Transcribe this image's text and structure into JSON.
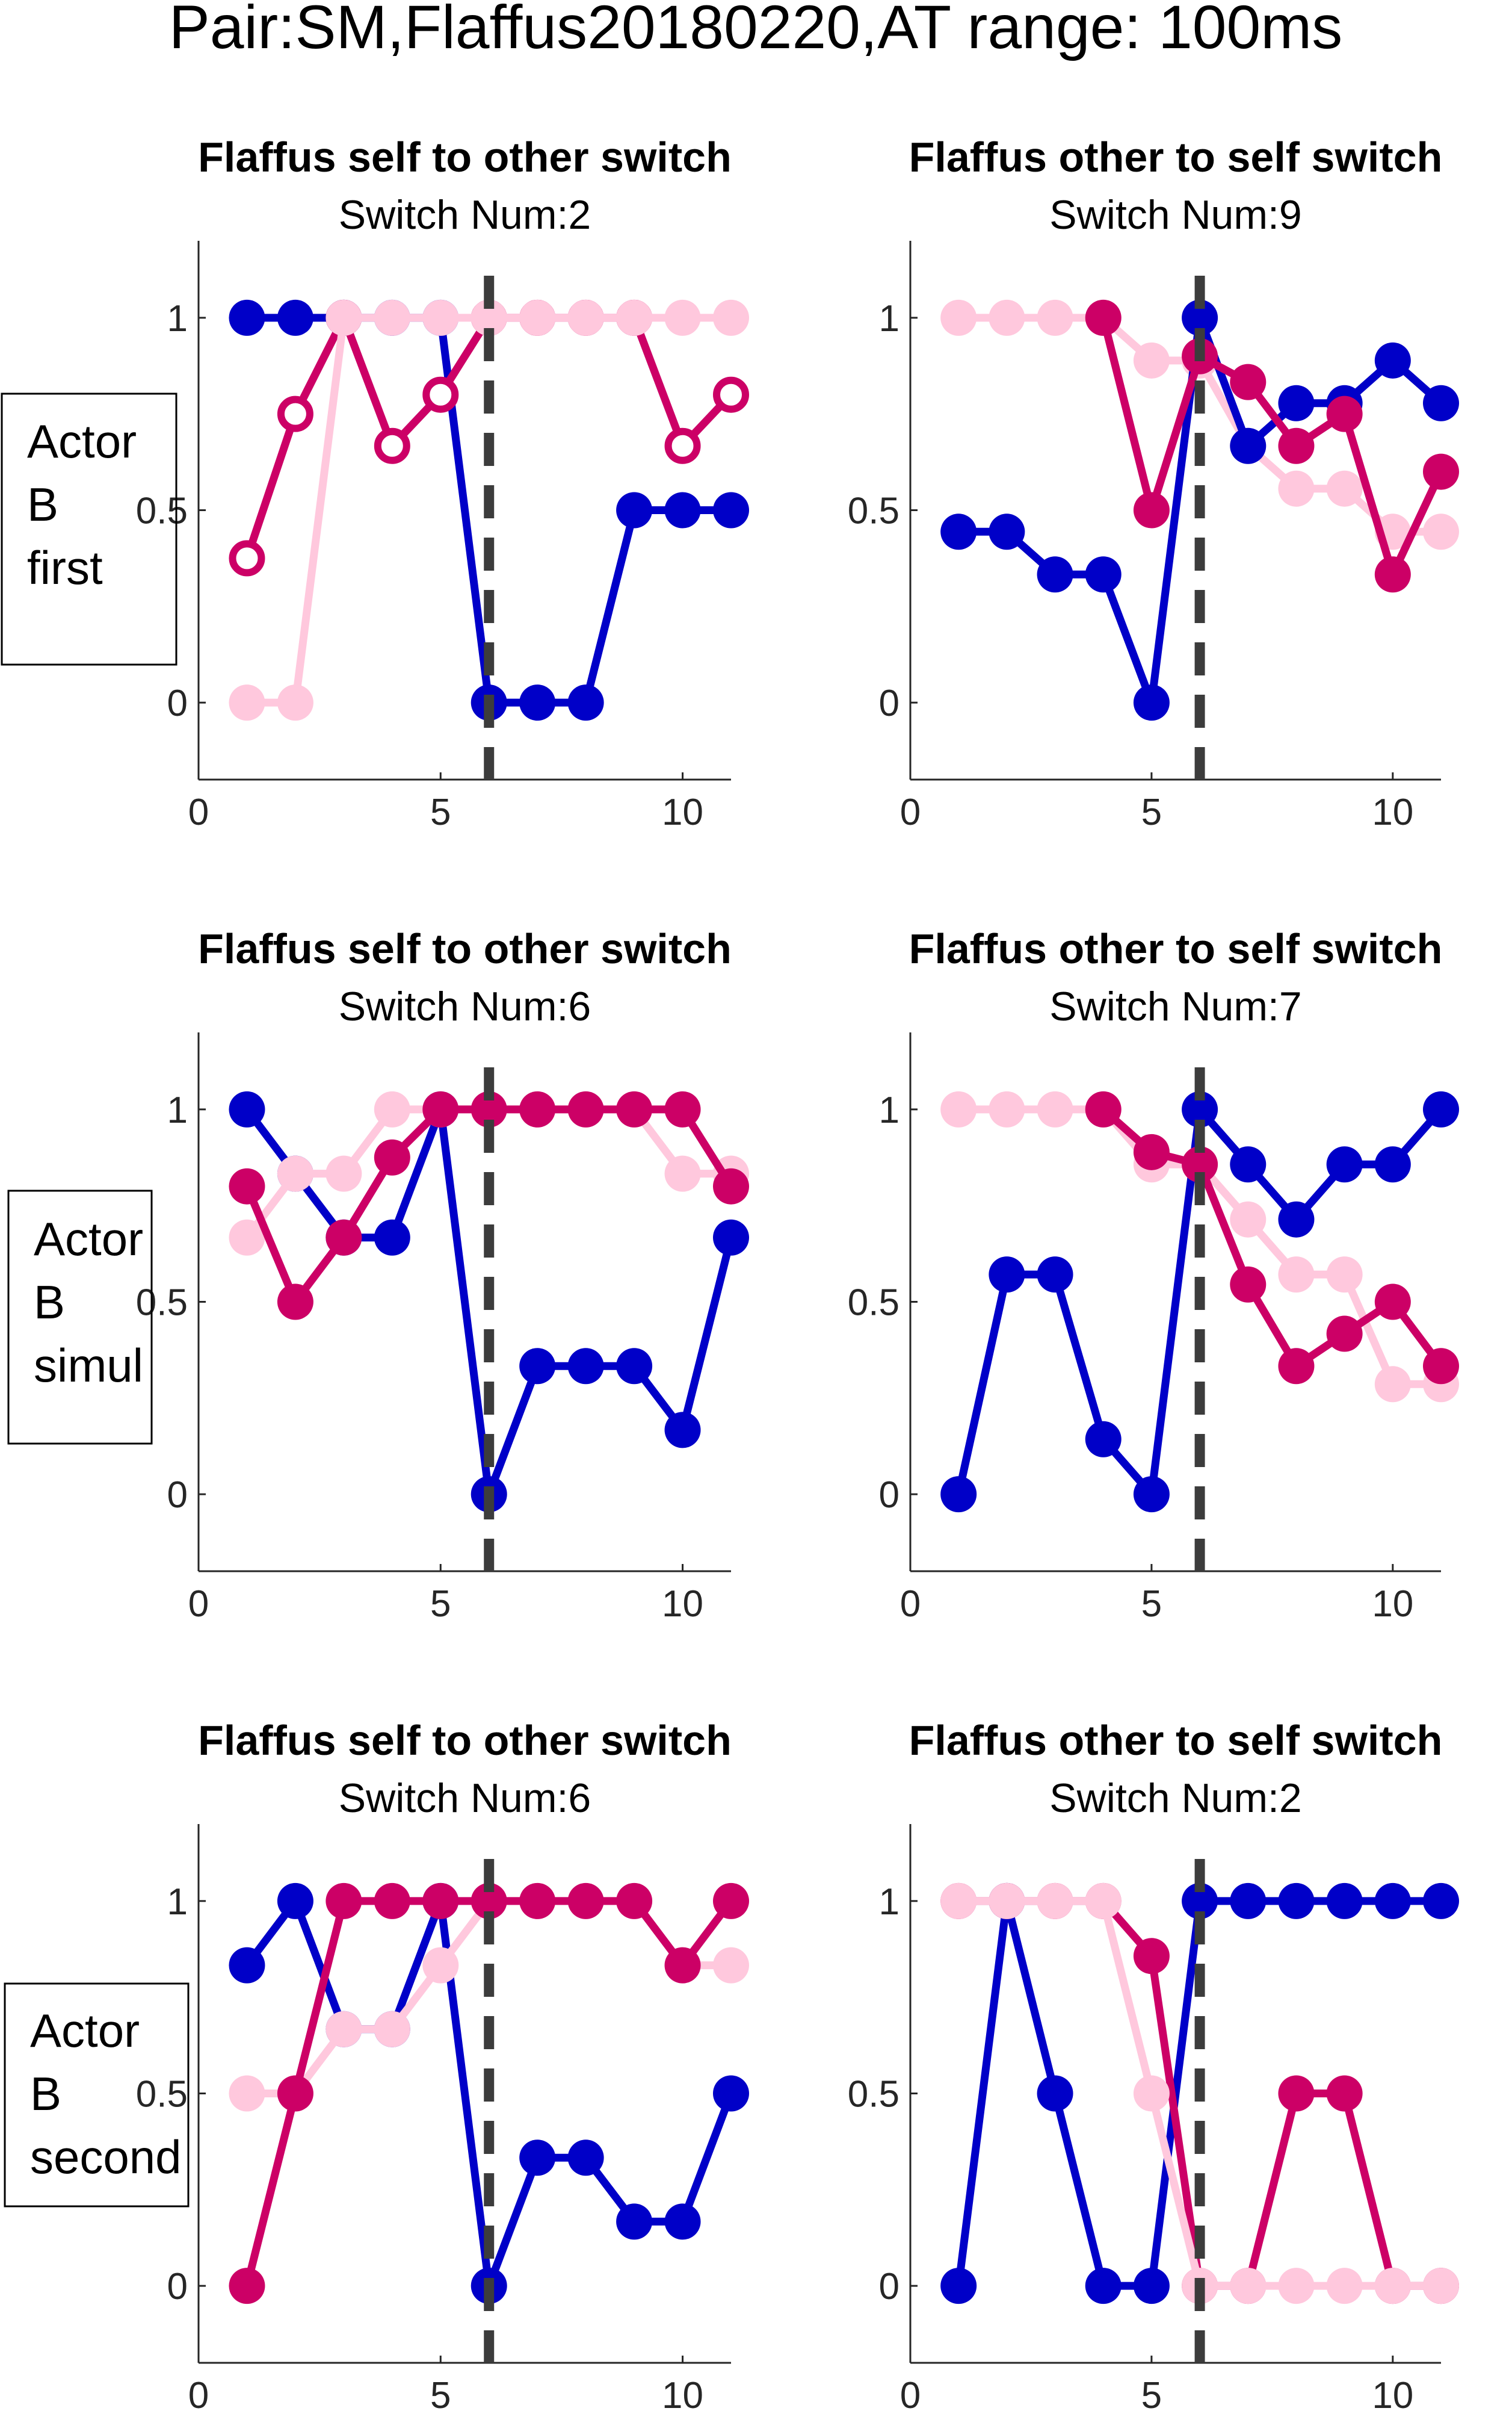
{
  "figure_title": "Pair:SM,Flaffus20180220,AT range: 100ms",
  "row_labels": [
    [
      "Actor",
      "B",
      "first"
    ],
    [
      "Actor",
      "B",
      "simul"
    ],
    [
      "Actor",
      "B",
      "second"
    ]
  ],
  "colors": {
    "blue": "#0000c8",
    "magenta": "#cc0066",
    "pink": "#ffc8dd",
    "dashed_line": "#3c3c3c",
    "axis": "#262626"
  },
  "chart_data": [
    {
      "type": "line",
      "title": "Flaffus self to other switch",
      "subtitle": "Switch Num:2",
      "xlim": [
        0,
        11
      ],
      "ylim": [
        -0.2,
        1.2
      ],
      "xticks": [
        "0",
        "5",
        "10"
      ],
      "yticks": [
        "0",
        "0.5",
        "1"
      ],
      "vline_x": 6,
      "series": [
        {
          "color": "blue",
          "marker": "filled",
          "x": [
            1,
            2,
            3,
            4,
            5,
            6,
            7,
            8,
            9,
            10,
            11
          ],
          "y": [
            1,
            1,
            1,
            1,
            1,
            0,
            0,
            0,
            0.5,
            0.5,
            0.5
          ]
        },
        {
          "color": "magenta",
          "marker": "open",
          "x": [
            1,
            2,
            3,
            4,
            5,
            6,
            7,
            8,
            9,
            10,
            11
          ],
          "y": [
            0.375,
            0.75,
            1,
            0.667,
            0.8,
            1,
            1,
            1,
            1,
            0.667,
            0.8
          ]
        },
        {
          "color": "pink",
          "marker": "filled",
          "x": [
            1,
            2,
            3,
            4,
            5,
            6,
            7,
            8,
            9,
            10,
            11
          ],
          "y": [
            0,
            0,
            1,
            1,
            1,
            1,
            1,
            1,
            1,
            1,
            1
          ]
        }
      ]
    },
    {
      "type": "line",
      "title": "Flaffus other to self switch",
      "subtitle": "Switch Num:9",
      "xlim": [
        0,
        11
      ],
      "ylim": [
        -0.2,
        1.2
      ],
      "xticks": [
        "0",
        "5",
        "10"
      ],
      "yticks": [
        "0",
        "0.5",
        "1"
      ],
      "vline_x": 6,
      "series": [
        {
          "color": "pink",
          "marker": "filled",
          "x": [
            1,
            2,
            3,
            4,
            5,
            6,
            7,
            8,
            9,
            10,
            11
          ],
          "y": [
            1,
            1,
            1,
            1,
            0.889,
            0.889,
            0.667,
            0.556,
            0.556,
            0.444,
            0.444
          ]
        },
        {
          "color": "blue",
          "marker": "filled",
          "x": [
            1,
            2,
            3,
            4,
            5,
            6,
            7,
            8,
            9,
            10,
            11
          ],
          "y": [
            0.444,
            0.444,
            0.333,
            0.333,
            0,
            1,
            0.667,
            0.778,
            0.778,
            0.889,
            0.778
          ]
        },
        {
          "color": "magenta",
          "marker": "filled",
          "x": [
            4,
            5,
            6,
            7,
            8,
            9,
            10,
            11
          ],
          "y": [
            1,
            0.5,
            0.9,
            0.833,
            0.667,
            0.75,
            0.333,
            0.6
          ]
        }
      ]
    },
    {
      "type": "line",
      "title": "Flaffus self to other switch",
      "subtitle": "Switch Num:6",
      "xlim": [
        0,
        11
      ],
      "ylim": [
        -0.2,
        1.2
      ],
      "xticks": [
        "0",
        "5",
        "10"
      ],
      "yticks": [
        "0",
        "0.5",
        "1"
      ],
      "vline_x": 6,
      "series": [
        {
          "color": "blue",
          "marker": "filled",
          "x": [
            1,
            2,
            3,
            4,
            5,
            6,
            7,
            8,
            9,
            10,
            11
          ],
          "y": [
            1,
            0.833,
            0.667,
            0.667,
            1,
            0,
            0.333,
            0.333,
            0.333,
            0.167,
            0.667
          ]
        },
        {
          "color": "pink",
          "marker": "filled",
          "x": [
            1,
            2,
            3,
            4,
            5,
            6,
            7,
            8,
            9,
            10,
            11
          ],
          "y": [
            0.667,
            0.833,
            0.833,
            1,
            1,
            1,
            1,
            1,
            1,
            0.833,
            0.833
          ]
        },
        {
          "color": "magenta",
          "marker": "filled",
          "x": [
            1,
            2,
            3,
            4,
            5,
            6,
            7,
            8,
            9,
            10,
            11
          ],
          "y": [
            0.8,
            0.5,
            0.667,
            0.875,
            1,
            1,
            1,
            1,
            1,
            1,
            0.8
          ]
        }
      ]
    },
    {
      "type": "line",
      "title": "Flaffus other to self switch",
      "subtitle": "Switch Num:7",
      "xlim": [
        0,
        11
      ],
      "ylim": [
        -0.2,
        1.2
      ],
      "xticks": [
        "0",
        "5",
        "10"
      ],
      "yticks": [
        "0",
        "0.5",
        "1"
      ],
      "vline_x": 6,
      "series": [
        {
          "color": "blue",
          "marker": "filled",
          "x": [
            1,
            2,
            3,
            4,
            5,
            6,
            7,
            8,
            9,
            10,
            11
          ],
          "y": [
            0,
            0.571,
            0.571,
            0.143,
            0,
            1,
            0.857,
            0.714,
            0.857,
            0.857,
            1
          ]
        },
        {
          "color": "pink",
          "marker": "filled",
          "x": [
            1,
            2,
            3,
            4,
            5,
            6,
            7,
            8,
            9,
            10,
            11
          ],
          "y": [
            1,
            1,
            1,
            1,
            0.857,
            0.857,
            0.714,
            0.571,
            0.571,
            0.286,
            0.286
          ]
        },
        {
          "color": "magenta",
          "marker": "filled",
          "x": [
            4,
            5,
            6,
            7,
            8,
            9,
            10,
            11
          ],
          "y": [
            1,
            0.889,
            0.857,
            0.545,
            0.333,
            0.417,
            0.5,
            0.333
          ]
        }
      ]
    },
    {
      "type": "line",
      "title": "Flaffus self to other switch",
      "subtitle": "Switch Num:6",
      "xlim": [
        0,
        11
      ],
      "ylim": [
        -0.2,
        1.2
      ],
      "xticks": [
        "0",
        "5",
        "10"
      ],
      "yticks": [
        "0",
        "0.5",
        "1"
      ],
      "vline_x": 6,
      "series": [
        {
          "color": "blue",
          "marker": "filled",
          "x": [
            1,
            2,
            3,
            4,
            5,
            6,
            7,
            8,
            9,
            10,
            11
          ],
          "y": [
            0.833,
            1,
            0.667,
            0.667,
            1,
            0,
            0.333,
            0.333,
            0.167,
            0.167,
            0.5
          ]
        },
        {
          "color": "pink",
          "marker": "filled",
          "x": [
            1,
            2,
            3,
            4,
            5,
            6,
            7,
            8,
            9,
            10,
            11
          ],
          "y": [
            0.5,
            0.5,
            0.667,
            0.667,
            0.833,
            1,
            1,
            1,
            1,
            0.833,
            0.833
          ]
        },
        {
          "color": "magenta",
          "marker": "filled",
          "x": [
            1,
            2,
            3,
            4,
            5,
            6,
            7,
            8,
            9,
            10,
            11
          ],
          "y": [
            0,
            0.5,
            1,
            1,
            1,
            1,
            1,
            1,
            1,
            0.833,
            1
          ]
        }
      ]
    },
    {
      "type": "line",
      "title": "Flaffus other to self switch",
      "subtitle": "Switch Num:2",
      "xlim": [
        0,
        11
      ],
      "ylim": [
        -0.2,
        1.2
      ],
      "xticks": [
        "0",
        "5",
        "10"
      ],
      "yticks": [
        "0",
        "0.5",
        "1"
      ],
      "vline_x": 6,
      "series": [
        {
          "color": "blue",
          "marker": "filled",
          "x": [
            1,
            2,
            3,
            4,
            5,
            6,
            7,
            8,
            9,
            10,
            11
          ],
          "y": [
            0,
            1,
            0.5,
            0,
            0,
            1,
            1,
            1,
            1,
            1,
            1
          ]
        },
        {
          "color": "magenta",
          "marker": "filled",
          "x": [
            1,
            2,
            3,
            4,
            5,
            6,
            7,
            8,
            9,
            10,
            11
          ],
          "y": [
            1,
            1,
            1,
            1,
            0.857,
            0,
            0,
            0.5,
            0.5,
            0,
            0
          ]
        },
        {
          "color": "pink",
          "marker": "filled",
          "x": [
            1,
            2,
            3,
            4,
            5,
            6,
            7,
            8,
            9,
            10,
            11
          ],
          "y": [
            1,
            1,
            1,
            1,
            0.5,
            0,
            0,
            0,
            0,
            0,
            0
          ]
        }
      ]
    }
  ]
}
